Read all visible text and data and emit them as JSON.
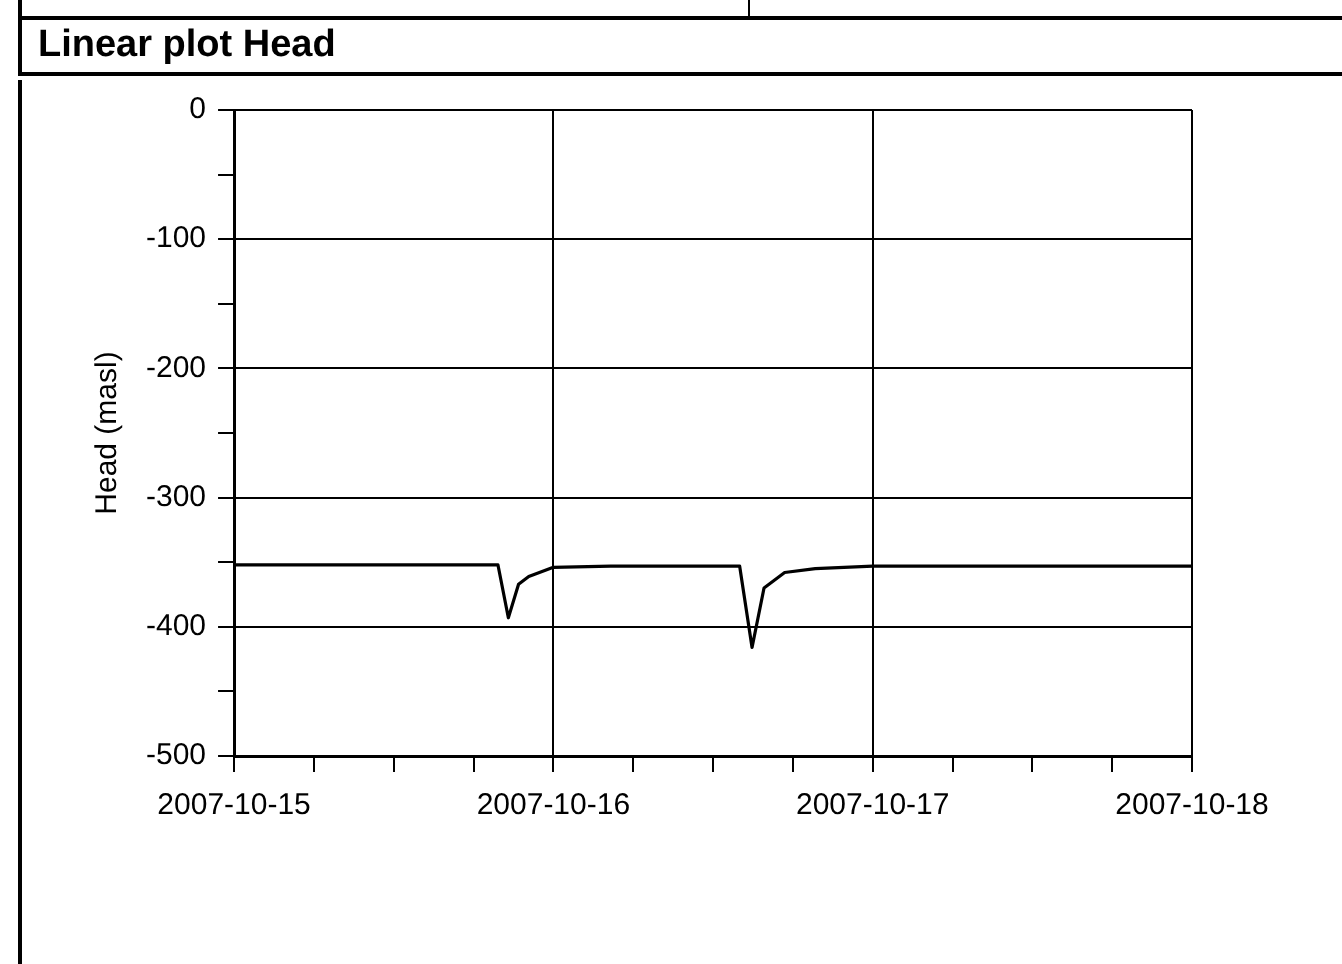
{
  "chart_data": {
    "type": "line",
    "title": "Linear plot Head",
    "ylabel": "Head (masl)",
    "x": [
      "2007-10-15T00:00",
      "2007-10-15T19:50",
      "2007-10-15T20:37",
      "2007-10-15T21:23",
      "2007-10-15T22:09",
      "2007-10-16T00:00",
      "2007-10-16T04:19",
      "2007-10-16T14:00",
      "2007-10-16T14:56",
      "2007-10-16T15:50",
      "2007-10-16T17:23",
      "2007-10-16T19:41",
      "2007-10-17T00:00",
      "2007-10-18T00:00"
    ],
    "series": [
      {
        "color": "#000000",
        "values": [
          -352,
          -352,
          -393,
          -367,
          -361,
          -354,
          -353,
          -353,
          -416,
          -370,
          -358,
          -355,
          -353,
          -353
        ]
      }
    ],
    "xlim": [
      "2007-10-15",
      "2007-10-18"
    ],
    "xticks": [
      {
        "value": "2007-10-15",
        "label": "2007-10-15"
      },
      {
        "value": "2007-10-15T06:00",
        "label": null
      },
      {
        "value": "2007-10-15T12:00",
        "label": null
      },
      {
        "value": "2007-10-15T18:00",
        "label": null
      },
      {
        "value": "2007-10-16",
        "label": "2007-10-16"
      },
      {
        "value": "2007-10-16T06:00",
        "label": null
      },
      {
        "value": "2007-10-16T12:00",
        "label": null
      },
      {
        "value": "2007-10-16T18:00",
        "label": null
      },
      {
        "value": "2007-10-17",
        "label": "2007-10-17"
      },
      {
        "value": "2007-10-17T06:00",
        "label": null
      },
      {
        "value": "2007-10-17T12:00",
        "label": null
      },
      {
        "value": "2007-10-17T18:00",
        "label": null
      },
      {
        "value": "2007-10-18",
        "label": "2007-10-18"
      }
    ],
    "ylim": [
      -500,
      0
    ],
    "yticks": [
      -500,
      {
        "value": -450,
        "label": null
      },
      -400,
      {
        "value": -350,
        "label": null
      },
      -300,
      {
        "value": -250,
        "label": null
      },
      -200,
      {
        "value": -150,
        "label": null
      },
      -100,
      {
        "value": -50,
        "label": null
      },
      0
    ],
    "grid": true,
    "legend": false,
    "marker": "none",
    "line_style": "solid"
  }
}
